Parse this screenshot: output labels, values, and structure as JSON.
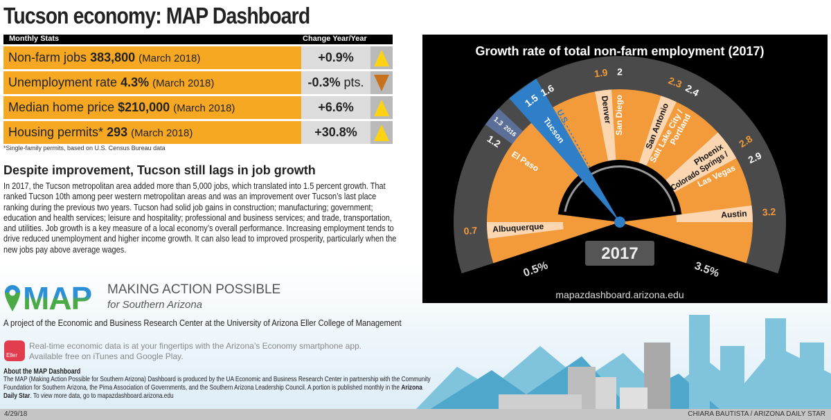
{
  "title": "Tucson economy: MAP Dashboard",
  "stats": {
    "header_left": "Monthly Stats",
    "header_right": "Change Year/Year",
    "rows": [
      {
        "label": "Non-farm jobs",
        "value": "383,800",
        "date": "(March 2018)",
        "change": "+0.9%",
        "unit": "",
        "direction": "up"
      },
      {
        "label": "Unemployment rate",
        "value": "4.3%",
        "date": "(March 2018)",
        "change": "-0.3%",
        "unit": " pts.",
        "direction": "down"
      },
      {
        "label": "Median home price",
        "value": "$210,000",
        "date": "(March 2018)",
        "change": "+6.6%",
        "unit": "",
        "direction": "up"
      },
      {
        "label": "Housing permits*",
        "value": "293",
        "date": "(March 2018)",
        "change": "+30.8%",
        "unit": "",
        "direction": "up"
      }
    ],
    "footnote": "*Single-family permits, based on U.S. Census Bureau data",
    "colors": {
      "up": "#fcd214",
      "down": "#c8721e",
      "row": "#f7a823"
    }
  },
  "article": {
    "heading": "Despite improvement, Tucson still lags in job growth",
    "body": "In 2017, the Tucson metropolitan area added more than 5,000 jobs, which translated into 1.5 percent growth. That ranked Tucson 10th among peer western metropolitan areas and was an improvement over Tucson’s last place ranking during the previous two years. Tucson had solid job gains in construction; manufacturing; government; education and health services; leisure and hospitality; professional and business services; and trade, transportation, and utilities. Job growth is a key measure of a local economy’s overall performance. Increasing employment tends to drive reduced unemployment and higher income growth. It can also lead to improved prosperity, particularly when the new jobs pay above average wages."
  },
  "branding": {
    "logo": "MAP",
    "tagline": "MAKING ACTION POSSIBLE",
    "subtagline": "for Southern Arizona",
    "project": "A project of the Economic and Business Research Center at the University of Arizona Eller College of Management",
    "app_icon_text": "Eller",
    "app_line1": "Real-time economic data is at your fingertips with the Arizona’s Economy smartphone app.",
    "app_line2": "Available free on iTunes and Google Play.",
    "about_heading": "About the MAP Dashboard",
    "about_body": "The MAP (Making Action Possible for Southern Arizona) Dashboard is produced by the UA Economic and Business Research Center in partnership with the Community Foundation for Southern Arizona, the Pima Association of Governments, and the Southern Arizona Leadership Council. A portion is published monthly in the ",
    "about_bold": "Arizona Daily Star",
    "about_tail": ". To view more data, go to mapazdashboard.arizona.edu"
  },
  "footer": {
    "date": "4/29/18",
    "credit": "CHIARA BAUTISTA / ARIZONA DAILY STAR"
  },
  "chart_data": {
    "type": "gauge",
    "title": "Growth rate of total non-farm employment (2017)",
    "year_label": "2017",
    "min_label": "0.5%",
    "max_label": "3.5%",
    "range": [
      0.5,
      3.5
    ],
    "url": "mapazdashboard.arizona.edu",
    "highlight": {
      "name": "Tucson",
      "value": 1.5,
      "prior_year": "2016",
      "prior_value": 1.3,
      "color": "#2f7fc8"
    },
    "reference": {
      "name": "U.S.",
      "value": 1.6
    },
    "series": [
      {
        "name": "Albuquerque",
        "value": 0.7,
        "style": "light"
      },
      {
        "name": "El Paso",
        "value": 1.2,
        "style": "dark"
      },
      {
        "name": "Denver",
        "value": 1.9,
        "style": "light"
      },
      {
        "name": "San Diego",
        "value": 2.0,
        "style": "dark"
      },
      {
        "name": "San Antonio",
        "value": 2.3,
        "style": "light"
      },
      {
        "name": "Salt Lake City / Portland",
        "value": 2.4,
        "style": "dark"
      },
      {
        "name": "Colorado Springs / Phoenix",
        "value": 2.8,
        "style": "light"
      },
      {
        "name": "Las Vegas",
        "value": 2.9,
        "style": "dark"
      },
      {
        "name": "Austin",
        "value": 3.2,
        "style": "light"
      }
    ],
    "colors": {
      "orange": "#f39a3a",
      "light": "#fbd6b0",
      "ring": "#4a4a4a",
      "highlight": "#2f7fc8"
    }
  }
}
